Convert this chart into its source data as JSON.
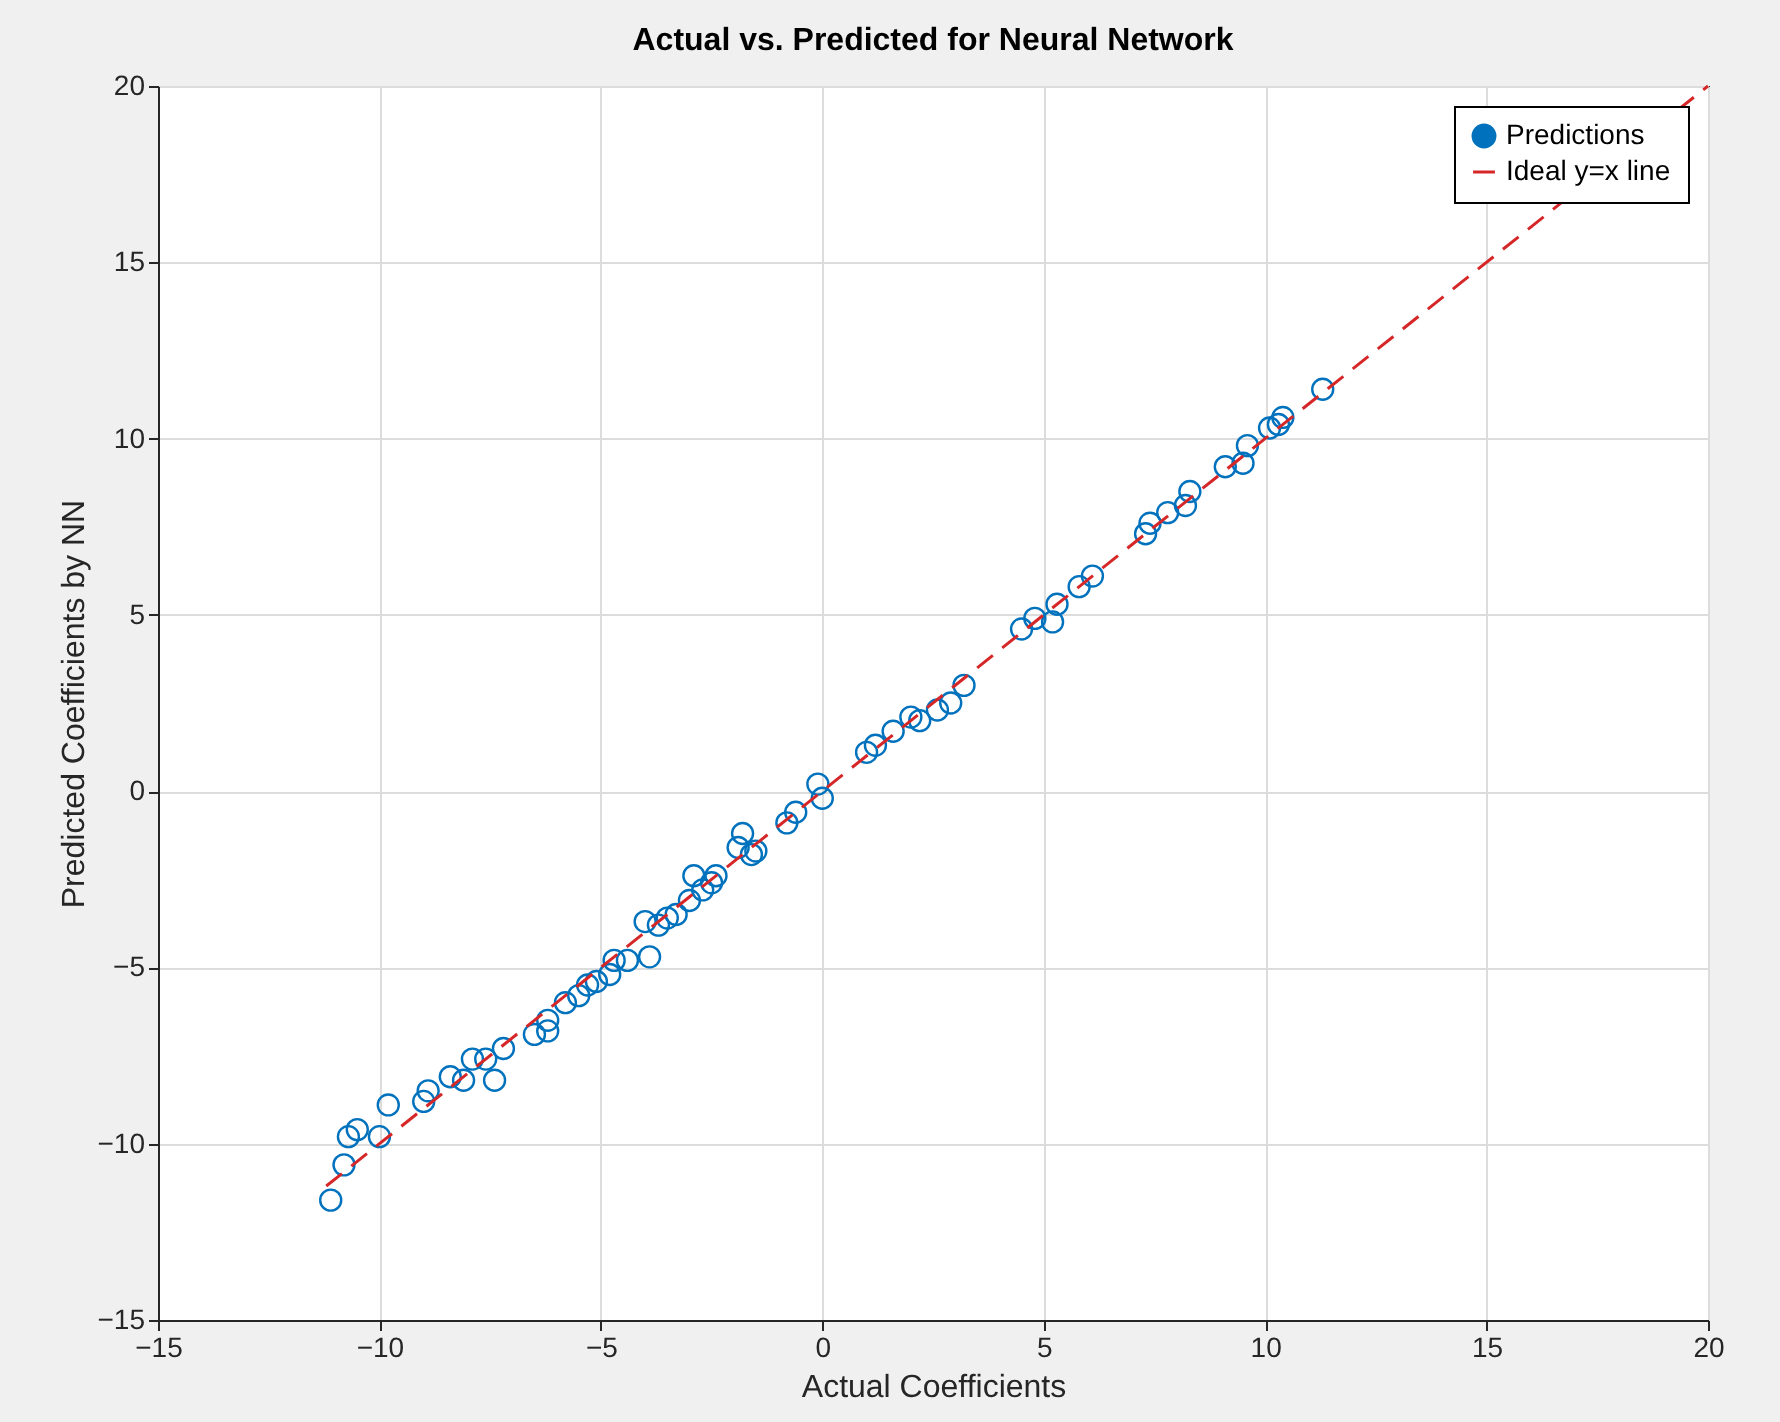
{
  "chart_data": {
    "type": "scatter",
    "title": "Actual vs. Predicted for Neural Network",
    "xlabel": "Actual Coefficients",
    "ylabel": "Predicted Coefficients by NN",
    "xlim": [
      -15,
      20
    ],
    "ylim": [
      -15,
      20
    ],
    "xticks": [
      -15,
      -10,
      -5,
      0,
      5,
      10,
      15,
      20
    ],
    "yticks": [
      -15,
      -10,
      -5,
      0,
      5,
      10,
      15,
      20
    ],
    "grid": true,
    "legend": "top right",
    "series": [
      {
        "name": "Predictions",
        "type": "scatter",
        "marker": "circle",
        "color": "#0072bd",
        "x": [
          -11.1,
          -10.8,
          -10.7,
          -10.5,
          -10.0,
          -9.8,
          -9.0,
          -8.9,
          -8.4,
          -8.1,
          -7.9,
          -7.6,
          -7.4,
          -7.2,
          -6.5,
          -6.2,
          -6.2,
          -5.8,
          -5.5,
          -5.3,
          -5.1,
          -4.8,
          -4.7,
          -4.4,
          -4.0,
          -3.9,
          -3.7,
          -3.5,
          -3.3,
          -3.0,
          -2.9,
          -2.7,
          -2.5,
          -2.4,
          -1.9,
          -1.8,
          -1.6,
          -1.5,
          -0.8,
          -0.6,
          -0.1,
          0.0,
          1.0,
          1.2,
          1.6,
          2.0,
          2.2,
          2.6,
          2.9,
          3.2,
          4.5,
          4.8,
          5.2,
          5.3,
          5.8,
          6.1,
          7.3,
          7.4,
          7.8,
          8.2,
          8.3,
          9.1,
          9.5,
          9.6,
          10.1,
          10.3,
          10.4,
          11.3
        ],
        "values": [
          -11.6,
          -10.6,
          -9.8,
          -9.6,
          -9.8,
          -8.9,
          -8.8,
          -8.5,
          -8.1,
          -8.2,
          -7.6,
          -7.6,
          -8.2,
          -7.3,
          -6.9,
          -6.5,
          -6.8,
          -6.0,
          -5.8,
          -5.5,
          -5.4,
          -5.2,
          -4.8,
          -4.8,
          -3.7,
          -4.7,
          -3.8,
          -3.6,
          -3.5,
          -3.1,
          -2.4,
          -2.8,
          -2.6,
          -2.4,
          -1.6,
          -1.2,
          -1.8,
          -1.7,
          -0.9,
          -0.6,
          0.2,
          -0.2,
          1.1,
          1.3,
          1.7,
          2.1,
          2.0,
          2.3,
          2.5,
          3.0,
          4.6,
          4.9,
          4.8,
          5.3,
          5.8,
          6.1,
          7.3,
          7.6,
          7.9,
          8.1,
          8.5,
          9.2,
          9.3,
          9.8,
          10.3,
          10.4,
          10.6,
          11.4
        ]
      },
      {
        "name": "Ideal y=x line",
        "type": "line",
        "line_style": "dashed",
        "color": "#d62728",
        "x": [
          -11.2,
          20
        ],
        "values": [
          -11.2,
          20
        ]
      }
    ]
  }
}
